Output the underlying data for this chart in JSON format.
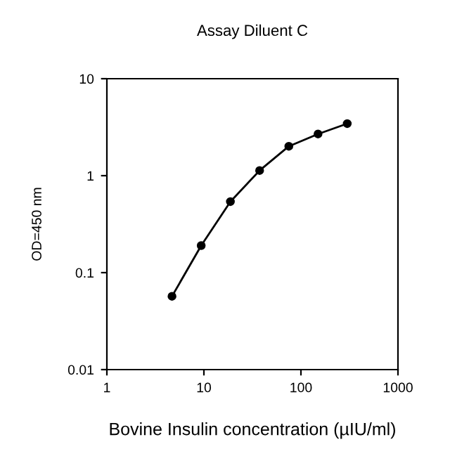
{
  "chart_data": {
    "type": "line",
    "title": "Assay Diluent C",
    "xlabel": "Bovine Insulin concentration (µIU/ml)",
    "ylabel": "OD=450 nm",
    "x": [
      4.69,
      9.38,
      18.75,
      37.5,
      75,
      150,
      300
    ],
    "series": [
      {
        "color": "#000000",
        "values": [
          0.057,
          0.19,
          0.54,
          1.13,
          2.01,
          2.69,
          3.44
        ]
      }
    ],
    "log": "xy",
    "xlim": [
      1,
      1000
    ],
    "ylim": [
      0.01,
      10
    ],
    "xticks": [
      1,
      10,
      100,
      1000
    ],
    "yticks": [
      0.01,
      0.1,
      1,
      10
    ],
    "grid": false,
    "legend": false,
    "marker": "circle",
    "line_style": "solid"
  }
}
